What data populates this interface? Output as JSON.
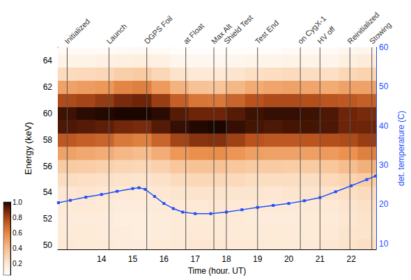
{
  "chart_data": {
    "type": "heatmap",
    "xlabel": "Time (hour. UT)",
    "ylabel": "Energy (keV)",
    "y2label": "det. temperature (C)",
    "xlim": [
      12.6,
      22.8
    ],
    "xticks": [
      14,
      15,
      16,
      17,
      18,
      19,
      20,
      21,
      22
    ],
    "ylim": [
      49.7,
      65
    ],
    "yticks": [
      50,
      52,
      54,
      56,
      58,
      60,
      62,
      64
    ],
    "y2lim": [
      8.5,
      60
    ],
    "y2ticks": [
      10,
      20,
      30,
      40,
      50,
      60
    ],
    "grid": false,
    "heatmap": {
      "x": [
        12.9,
        13.5,
        14.1,
        14.7,
        15.3,
        15.9,
        16.5,
        17.1,
        17.7,
        18.3,
        18.9,
        19.5,
        20.1,
        20.7,
        21.3,
        21.9,
        22.5
      ],
      "y": [
        50,
        51,
        52,
        53,
        54,
        55,
        56,
        57,
        58,
        59,
        60,
        61,
        62,
        63,
        64,
        65
      ],
      "values": [
        [
          0.19,
          0.18,
          0.17,
          0.18,
          0.2,
          0.25,
          0.34,
          0.5,
          0.74,
          0.94,
          0.96,
          0.78,
          0.5,
          0.26,
          0.13,
          0.08
        ],
        [
          0.18,
          0.18,
          0.17,
          0.19,
          0.21,
          0.24,
          0.33,
          0.48,
          0.72,
          0.93,
          0.98,
          0.8,
          0.52,
          0.27,
          0.13,
          0.08
        ],
        [
          0.18,
          0.17,
          0.17,
          0.18,
          0.2,
          0.23,
          0.31,
          0.46,
          0.7,
          0.92,
          0.99,
          0.83,
          0.54,
          0.28,
          0.14,
          0.08
        ],
        [
          0.17,
          0.17,
          0.16,
          0.17,
          0.19,
          0.22,
          0.29,
          0.42,
          0.64,
          0.89,
          1.0,
          0.88,
          0.6,
          0.32,
          0.15,
          0.09
        ],
        [
          0.17,
          0.16,
          0.16,
          0.17,
          0.18,
          0.21,
          0.28,
          0.4,
          0.62,
          0.88,
          1.0,
          0.9,
          0.62,
          0.34,
          0.16,
          0.09
        ],
        [
          0.18,
          0.17,
          0.17,
          0.18,
          0.2,
          0.23,
          0.31,
          0.46,
          0.7,
          0.93,
          0.98,
          0.82,
          0.53,
          0.28,
          0.14,
          0.08
        ],
        [
          0.19,
          0.18,
          0.18,
          0.19,
          0.21,
          0.26,
          0.36,
          0.54,
          0.8,
          0.97,
          0.93,
          0.72,
          0.44,
          0.22,
          0.11,
          0.07
        ],
        [
          0.2,
          0.19,
          0.18,
          0.19,
          0.22,
          0.28,
          0.38,
          0.57,
          0.85,
          0.99,
          0.9,
          0.65,
          0.38,
          0.19,
          0.1,
          0.06
        ],
        [
          0.2,
          0.19,
          0.18,
          0.2,
          0.22,
          0.28,
          0.38,
          0.58,
          0.86,
          1.0,
          0.9,
          0.64,
          0.37,
          0.19,
          0.1,
          0.06
        ],
        [
          0.19,
          0.18,
          0.18,
          0.19,
          0.21,
          0.27,
          0.36,
          0.55,
          0.81,
          0.97,
          0.93,
          0.7,
          0.42,
          0.21,
          0.11,
          0.07
        ],
        [
          0.19,
          0.18,
          0.17,
          0.19,
          0.21,
          0.25,
          0.34,
          0.51,
          0.76,
          0.95,
          0.96,
          0.76,
          0.47,
          0.24,
          0.12,
          0.07
        ],
        [
          0.18,
          0.18,
          0.17,
          0.18,
          0.2,
          0.25,
          0.34,
          0.5,
          0.74,
          0.94,
          0.97,
          0.78,
          0.49,
          0.25,
          0.12,
          0.07
        ],
        [
          0.18,
          0.18,
          0.17,
          0.18,
          0.21,
          0.25,
          0.33,
          0.5,
          0.74,
          0.95,
          0.97,
          0.78,
          0.5,
          0.26,
          0.13,
          0.08
        ],
        [
          0.19,
          0.18,
          0.18,
          0.19,
          0.21,
          0.25,
          0.34,
          0.51,
          0.75,
          0.95,
          0.96,
          0.77,
          0.49,
          0.25,
          0.13,
          0.08
        ],
        [
          0.2,
          0.19,
          0.18,
          0.19,
          0.22,
          0.27,
          0.36,
          0.53,
          0.77,
          0.94,
          0.94,
          0.75,
          0.47,
          0.24,
          0.12,
          0.08
        ],
        [
          0.22,
          0.21,
          0.2,
          0.21,
          0.24,
          0.3,
          0.4,
          0.56,
          0.78,
          0.9,
          0.9,
          0.74,
          0.5,
          0.28,
          0.15,
          0.1
        ],
        [
          0.24,
          0.22,
          0.22,
          0.23,
          0.26,
          0.33,
          0.45,
          0.62,
          0.82,
          0.9,
          0.88,
          0.72,
          0.5,
          0.3,
          0.17,
          0.11
        ]
      ]
    },
    "colorbar": {
      "range": [
        0.05,
        1
      ],
      "ticks": [
        0.2,
        0.4,
        0.6,
        0.8,
        {
          "value": 1,
          "label": "1.0"
        }
      ]
    },
    "series": [
      {
        "type": "line",
        "axis": "y2",
        "color": "#1f4fff",
        "marker": "square",
        "x": [
          12.62,
          13.0,
          13.5,
          14.0,
          14.5,
          15.0,
          15.2,
          15.4,
          15.7,
          16.0,
          16.3,
          16.6,
          17.0,
          17.5,
          18.0,
          18.5,
          19.0,
          19.5,
          20.0,
          20.5,
          21.0,
          21.5,
          22.0,
          22.5,
          22.78
        ],
        "values": [
          20.4,
          21.0,
          21.8,
          22.5,
          23.3,
          24.0,
          24.2,
          23.8,
          22.0,
          20.2,
          18.9,
          18.0,
          17.6,
          17.6,
          18.0,
          18.6,
          19.2,
          19.7,
          20.2,
          20.9,
          21.7,
          23.2,
          24.7,
          26.3,
          27.2
        ]
      }
    ],
    "events": [
      {
        "x": 12.9,
        "label": "Initialized"
      },
      {
        "x": 14.24,
        "label": "Launch"
      },
      {
        "x": 15.45,
        "label": "DGPS Foil"
      },
      {
        "x": 16.7,
        "label": "at Float"
      },
      {
        "x": 17.6,
        "label": "Max Alt"
      },
      {
        "x": 18.0,
        "label": "Shield Test"
      },
      {
        "x": 19.0,
        "label": "Test End"
      },
      {
        "x": 20.37,
        "label": "on CygX-1"
      },
      {
        "x": 21.0,
        "label": "HV off"
      },
      {
        "x": 21.96,
        "label": "Reinitialized"
      },
      {
        "x": 22.66,
        "label": "Stowing"
      }
    ]
  }
}
